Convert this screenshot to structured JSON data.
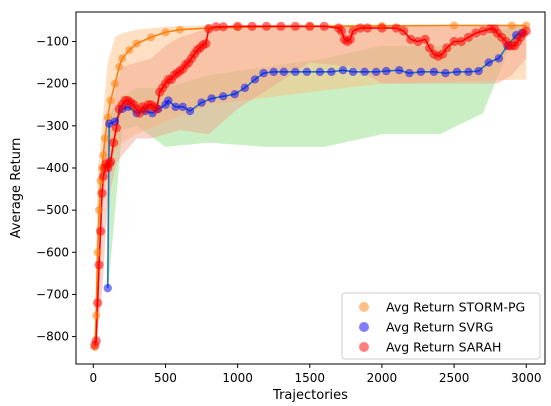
{
  "chart_data": {
    "type": "line",
    "xlabel": "Trajectories",
    "ylabel": "Average Return",
    "xlim": [
      -120,
      3130
    ],
    "ylim": [
      -865,
      -30
    ],
    "x_ticks": [
      0,
      500,
      1000,
      1500,
      2000,
      2500,
      3000
    ],
    "y_ticks": [
      -100,
      -200,
      -300,
      -400,
      -500,
      -600,
      -700,
      -800
    ],
    "grid": false,
    "legend_position": "lower-right",
    "series": [
      {
        "name": "Avg Return STORM-PG",
        "color": "#ff7f0e",
        "band_color": "#ffbb78",
        "x": [
          10,
          20,
          30,
          40,
          50,
          60,
          70,
          80,
          100,
          120,
          150,
          180,
          200,
          250,
          300,
          400,
          500,
          600,
          800,
          1000,
          1500,
          2000,
          2500,
          2900,
          3000
        ],
        "y": [
          -825,
          -750,
          -600,
          -500,
          -430,
          -400,
          -370,
          -330,
          -280,
          -240,
          -200,
          -160,
          -140,
          -120,
          -105,
          -90,
          -78,
          -72,
          -68,
          -66,
          -64,
          -63,
          -62,
          -62,
          -62
        ],
        "band_x": [
          10,
          30,
          60,
          100,
          150,
          200,
          300,
          500,
          800,
          1500,
          2000,
          3000
        ],
        "band_upper": [
          -790,
          -420,
          -300,
          -150,
          -90,
          -80,
          -72,
          -65,
          -62,
          -60,
          -60,
          -60
        ],
        "band_lower": [
          -835,
          -700,
          -500,
          -400,
          -360,
          -340,
          -320,
          -290,
          -250,
          -220,
          -200,
          -190
        ]
      },
      {
        "name": "Avg Return SVRG",
        "color": "#0000ff",
        "band_color": "#98df8a",
        "x": [
          100,
          110,
          150,
          200,
          240,
          300,
          360,
          410,
          450,
          500,
          520,
          570,
          620,
          670,
          750,
          820,
          900,
          980,
          1050,
          1120,
          1180,
          1250,
          1320,
          1400,
          1480,
          1570,
          1650,
          1730,
          1800,
          1880,
          1960,
          2030,
          2120,
          2190,
          2270,
          2360,
          2440,
          2520,
          2600,
          2670,
          2740,
          2810,
          2870,
          2930,
          2970
        ],
        "y": [
          -685,
          -295,
          -290,
          -260,
          -255,
          -270,
          -265,
          -270,
          -260,
          -250,
          -240,
          -255,
          -255,
          -265,
          -245,
          -235,
          -230,
          -225,
          -210,
          -190,
          -175,
          -172,
          -172,
          -172,
          -172,
          -172,
          -172,
          -168,
          -172,
          -172,
          -172,
          -170,
          -168,
          -175,
          -172,
          -172,
          -175,
          -172,
          -172,
          -170,
          -150,
          -140,
          -110,
          -85,
          -80
        ],
        "band_x": [
          100,
          200,
          300,
          500,
          800,
          1200,
          1600,
          2000,
          2400,
          2700,
          2900,
          3000
        ],
        "band_upper": [
          -280,
          -230,
          -210,
          -210,
          -180,
          -160,
          -140,
          -110,
          -110,
          -90,
          -65,
          -60
        ],
        "band_lower": [
          -700,
          -310,
          -300,
          -350,
          -340,
          -350,
          -350,
          -320,
          -320,
          -270,
          -100,
          -90
        ]
      },
      {
        "name": "Avg Return SARAH",
        "color": "#ff0000",
        "band_color": "#f2a08a",
        "x": [
          10,
          20,
          30,
          40,
          50,
          60,
          70,
          80,
          90,
          100,
          110,
          120,
          140,
          160,
          180,
          200,
          220,
          240,
          260,
          280,
          300,
          320,
          340,
          360,
          380,
          400,
          420,
          440,
          460,
          480,
          500,
          520,
          540,
          560,
          580,
          600,
          620,
          640,
          660,
          680,
          700,
          720,
          740,
          760,
          780,
          800,
          850,
          900,
          1000,
          1100,
          1200,
          1300,
          1400,
          1500,
          1600,
          1700,
          1720,
          1740,
          1760,
          1780,
          1800,
          1850,
          1900,
          2000,
          2100,
          2150,
          2200,
          2250,
          2300,
          2330,
          2360,
          2390,
          2420,
          2450,
          2500,
          2550,
          2600,
          2650,
          2700,
          2750,
          2780,
          2800,
          2830,
          2860,
          2880,
          2900,
          2920,
          2940,
          2960,
          2980,
          3000
        ],
        "y": [
          -820,
          -810,
          -720,
          -630,
          -550,
          -460,
          -420,
          -400,
          -390,
          -400,
          -390,
          -385,
          -340,
          -305,
          -260,
          -250,
          -240,
          -240,
          -245,
          -250,
          -260,
          -270,
          -255,
          -260,
          -250,
          -250,
          -255,
          -260,
          -220,
          -210,
          -200,
          -190,
          -190,
          -180,
          -175,
          -170,
          -165,
          -155,
          -150,
          -140,
          -130,
          -120,
          -115,
          -108,
          -105,
          -70,
          -65,
          -65,
          -64,
          -64,
          -64,
          -64,
          -64,
          -64,
          -64,
          -68,
          -75,
          -95,
          -100,
          -95,
          -75,
          -68,
          -68,
          -68,
          -68,
          -75,
          -95,
          -100,
          -95,
          -115,
          -130,
          -135,
          -130,
          -115,
          -100,
          -100,
          -90,
          -80,
          -75,
          -70,
          -70,
          -80,
          -90,
          -100,
          -110,
          -110,
          -110,
          -100,
          -90,
          -80,
          -75
        ],
        "band_x": [
          10,
          60,
          100,
          160,
          200,
          300,
          400,
          500,
          600,
          800,
          1000,
          1500,
          1800,
          2000,
          2200,
          2400,
          2600,
          2800,
          2900,
          3000
        ],
        "band_upper": [
          -800,
          -360,
          -300,
          -200,
          -160,
          -150,
          -140,
          -110,
          -90,
          -68,
          -65,
          -64,
          -64,
          -65,
          -65,
          -65,
          -64,
          -64,
          -62,
          -60
        ],
        "band_lower": [
          -835,
          -700,
          -480,
          -390,
          -370,
          -330,
          -330,
          -320,
          -310,
          -320,
          -260,
          -150,
          -160,
          -200,
          -200,
          -200,
          -200,
          -200,
          -180,
          -140
        ]
      }
    ]
  }
}
